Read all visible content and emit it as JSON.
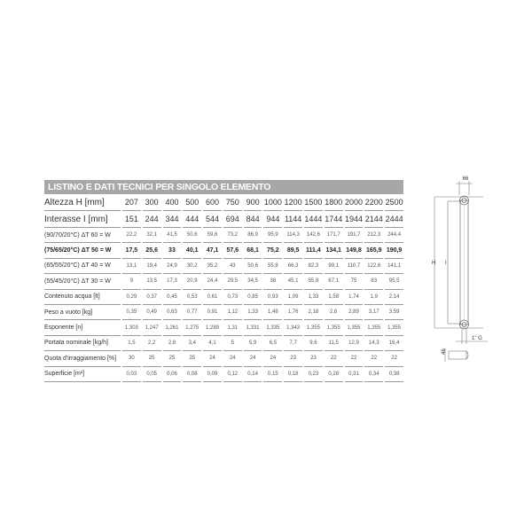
{
  "title": "LISTINO E DATI TECNICI PER SINGOLO ELEMENTO",
  "rows": [
    {
      "label": "Altezza H [mm]",
      "style": "big",
      "values": [
        "207",
        "300",
        "400",
        "500",
        "600",
        "750",
        "900",
        "1000",
        "1200",
        "1500",
        "1800",
        "2000",
        "2200",
        "2500"
      ]
    },
    {
      "label": "Interasse I [mm]",
      "style": "big",
      "values": [
        "151",
        "244",
        "344",
        "444",
        "544",
        "694",
        "844",
        "944",
        "1144",
        "1444",
        "1744",
        "1944",
        "2144",
        "2444"
      ]
    },
    {
      "label": "(90/70/20°C) ΔT 60 = W",
      "style": "",
      "values": [
        "22,2",
        "32,1",
        "41,5",
        "50,6",
        "59,6",
        "73,2",
        "86,9",
        "95,9",
        "114,3",
        "142,6",
        "171,7",
        "191,7",
        "212,3",
        "244,4"
      ]
    },
    {
      "label": "(75/65/20°C) ΔT 50 = W",
      "style": "bold",
      "values": [
        "17,5",
        "25,6",
        "33",
        "40,1",
        "47,1",
        "57,6",
        "68,1",
        "75,2",
        "89,5",
        "111,4",
        "134,1",
        "149,8",
        "165,9",
        "190,9"
      ]
    },
    {
      "label": "(65/55/20°C) ΔT 40 = W",
      "style": "",
      "values": [
        "13,1",
        "19,4",
        "24,9",
        "30,2",
        "35,2",
        "43",
        "50,6",
        "55,8",
        "66,3",
        "82,3",
        "99,1",
        "110,7",
        "122,6",
        "141,1"
      ]
    },
    {
      "label": "(55/45/20°C) ΔT 30 = W",
      "style": "",
      "values": [
        "9",
        "13,5",
        "17,3",
        "20,9",
        "24,4",
        "29,5",
        "34,5",
        "38",
        "45,1",
        "55,8",
        "67,1",
        "75",
        "83",
        "95,5"
      ]
    },
    {
      "label": "Contenuto acqua [lt]",
      "style": "",
      "values": [
        "0,29",
        "0,37",
        "0,45",
        "0,53",
        "0,61",
        "0,73",
        "0,85",
        "0,93",
        "1,09",
        "1,33",
        "1,58",
        "1,74",
        "1,9",
        "2,14"
      ]
    },
    {
      "label": "Peso a vuoto [kg]",
      "style": "",
      "values": [
        "0,35",
        "0,49",
        "0,63",
        "0,77",
        "0,91",
        "1,12",
        "1,33",
        "1,48",
        "1,76",
        "2,18",
        "2,6",
        "2,89",
        "3,17",
        "3,59"
      ]
    },
    {
      "label": "Esponente [n]",
      "style": "",
      "values": [
        "1,303",
        "1,247",
        "1,261",
        "1,275",
        "1,289",
        "1,31",
        "1,331",
        "1,335",
        "1,343",
        "1,355",
        "1,355",
        "1,355",
        "1,355",
        "1,355"
      ]
    },
    {
      "label": "Portata nominale [kg/h]",
      "style": "",
      "values": [
        "1,5",
        "2,2",
        "2,8",
        "3,4",
        "4,1",
        "5",
        "5,9",
        "6,5",
        "7,7",
        "9,6",
        "11,5",
        "12,9",
        "14,3",
        "16,4"
      ]
    },
    {
      "label": "Quota d'irraggiamento [%]",
      "style": "",
      "values": [
        "30",
        "25",
        "25",
        "25",
        "24",
        "24",
        "24",
        "24",
        "23",
        "23",
        "22",
        "22",
        "22",
        "22"
      ]
    },
    {
      "label": "Superficie [m²]",
      "style": "",
      "values": [
        "0,03",
        "0,05",
        "0,06",
        "0,08",
        "0,09",
        "0,12",
        "0,14",
        "0,15",
        "0,18",
        "0,23",
        "0,28",
        "0,31",
        "0,34",
        "0,38"
      ]
    }
  ],
  "diagram": {
    "width_label": "66",
    "height_label": "H",
    "interaxis_label": "I",
    "connection_label": "1\" G",
    "depth_label": "46"
  }
}
